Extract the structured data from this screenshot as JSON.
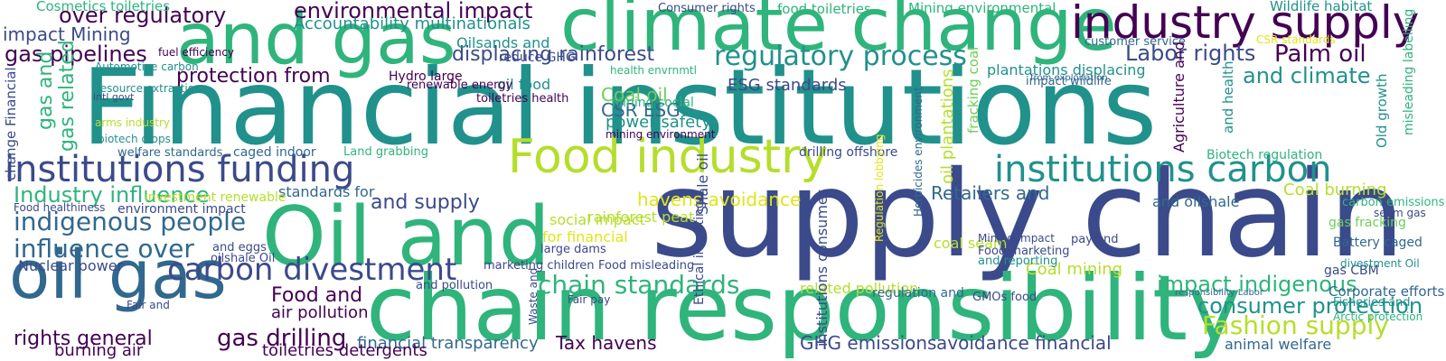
{
  "palette": {
    "dark_purple": "#440154",
    "indigo": "#3b4a8a",
    "blue": "#31688e",
    "teal": "#21918c",
    "green": "#2fb47c",
    "light_green": "#6ece58",
    "yellow_green": "#b5de2b",
    "yellow": "#e2e418"
  },
  "words": [
    {
      "text": "Financial institutions",
      "color": "#21918c",
      "orientation": "horizontal"
    },
    {
      "text": "supply chain",
      "color": "#3b4a8a",
      "orientation": "horizontal"
    },
    {
      "text": "climate change",
      "color": "#2fb47c",
      "orientation": "horizontal"
    },
    {
      "text": "and gas",
      "color": "#2fb47c",
      "orientation": "horizontal"
    },
    {
      "text": "chain responsibility",
      "color": "#2fb47c",
      "orientation": "horizontal"
    },
    {
      "text": "Oil and",
      "color": "#2fb47c",
      "orientation": "horizontal"
    },
    {
      "text": "oil gas",
      "color": "#31688e",
      "orientation": "horizontal"
    },
    {
      "text": "Food industry",
      "color": "#b5de2b",
      "orientation": "horizontal"
    },
    {
      "text": "industry supply",
      "color": "#440154",
      "orientation": "horizontal"
    },
    {
      "text": "institutions funding",
      "color": "#3b4a8a",
      "orientation": "horizontal"
    },
    {
      "text": "institutions carbon",
      "color": "#21918c",
      "orientation": "horizontal"
    },
    {
      "text": "carbon divestment",
      "color": "#3b4a8a",
      "orientation": "horizontal"
    },
    {
      "text": "indigenous people",
      "color": "#31688e",
      "orientation": "horizontal"
    },
    {
      "text": "influence over",
      "color": "#31688e",
      "orientation": "horizontal"
    },
    {
      "text": "Industry influence",
      "color": "#2fb47c",
      "orientation": "horizontal"
    },
    {
      "text": "environmental impact",
      "color": "#440154",
      "orientation": "horizontal"
    },
    {
      "text": "over regulatory",
      "color": "#440154",
      "orientation": "horizontal"
    },
    {
      "text": "regulatory process",
      "color": "#21918c",
      "orientation": "horizontal"
    },
    {
      "text": "Labor rights",
      "color": "#3b4a8a",
      "orientation": "horizontal"
    },
    {
      "text": "Palm oil",
      "color": "#440154",
      "orientation": "horizontal"
    },
    {
      "text": "and climate",
      "color": "#21918c",
      "orientation": "horizontal"
    },
    {
      "text": "gas pipelines",
      "color": "#440154",
      "orientation": "horizontal"
    },
    {
      "text": "protection from",
      "color": "#440154",
      "orientation": "horizontal"
    },
    {
      "text": "displacing rainforest",
      "color": "#3b4a8a",
      "orientation": "horizontal"
    },
    {
      "text": "chain standards",
      "color": "#2fb47c",
      "orientation": "horizontal"
    },
    {
      "text": "impact indigenous",
      "color": "#2fb47c",
      "orientation": "horizontal"
    },
    {
      "text": "consumer protection",
      "color": "#21918c",
      "orientation": "horizontal"
    },
    {
      "text": "Fashion supply",
      "color": "#b5de2b",
      "orientation": "horizontal"
    },
    {
      "text": "Food and",
      "color": "#440154",
      "orientation": "horizontal"
    },
    {
      "text": "air pollution",
      "color": "#440154",
      "orientation": "horizontal"
    },
    {
      "text": "gas drilling",
      "color": "#440154",
      "orientation": "horizontal"
    },
    {
      "text": "rights general",
      "color": "#440154",
      "orientation": "horizontal"
    },
    {
      "text": "burning air",
      "color": "#440154",
      "orientation": "horizontal"
    },
    {
      "text": "Tax havens",
      "color": "#440154",
      "orientation": "horizontal"
    },
    {
      "text": "GHG emissions",
      "color": "#3b4a8a",
      "orientation": "horizontal"
    },
    {
      "text": "avoidance financial",
      "color": "#3b4a8a",
      "orientation": "horizontal"
    },
    {
      "text": "financial transparency",
      "color": "#31688e",
      "orientation": "horizontal"
    },
    {
      "text": "animal welfare",
      "color": "#31688e",
      "orientation": "horizontal"
    },
    {
      "text": "Retailers and",
      "color": "#31688e",
      "orientation": "horizontal"
    },
    {
      "text": "Coal burning",
      "color": "#b5de2b",
      "orientation": "horizontal"
    },
    {
      "text": "Coal mining",
      "color": "#b5de2b",
      "orientation": "horizontal"
    },
    {
      "text": "havens avoidance",
      "color": "#e2e418",
      "orientation": "horizontal"
    },
    {
      "text": "rainforest peat",
      "color": "#b5de2b",
      "orientation": "horizontal"
    },
    {
      "text": "Coal oil",
      "color": "#6ece58",
      "orientation": "horizontal"
    },
    {
      "text": "CSR ESG",
      "color": "#31688e",
      "orientation": "horizontal"
    },
    {
      "text": "ESG standards",
      "color": "#3b4a8a",
      "orientation": "horizontal"
    },
    {
      "text": "and supply",
      "color": "#3b4a8a",
      "orientation": "horizontal"
    },
    {
      "text": "for financial",
      "color": "#e2e418",
      "orientation": "horizontal"
    },
    {
      "text": "standards for",
      "color": "#31688e",
      "orientation": "horizontal"
    },
    {
      "text": "social impact",
      "color": "#b5de2b",
      "orientation": "horizontal"
    },
    {
      "text": "power safety",
      "color": "#21918c",
      "orientation": "horizontal"
    },
    {
      "text": "Mining social",
      "color": "#2fb47c",
      "orientation": "horizontal"
    },
    {
      "text": "oil food",
      "color": "#21918c",
      "orientation": "horizontal"
    },
    {
      "text": "impact Mining",
      "color": "#3b4a8a",
      "orientation": "horizontal"
    },
    {
      "text": "Accountability multinationals",
      "color": "#21918c",
      "orientation": "horizontal"
    },
    {
      "text": "Oilsands and",
      "color": "#21918c",
      "orientation": "horizontal"
    },
    {
      "text": "reduce GHG",
      "color": "#3b4a8a",
      "orientation": "horizontal"
    },
    {
      "text": "Cosmetics toiletries",
      "color": "#2fb47c",
      "orientation": "horizontal"
    },
    {
      "text": "Consumer rights",
      "color": "#3b4a8a",
      "orientation": "horizontal"
    },
    {
      "text": "food toiletries",
      "color": "#2fb47c",
      "orientation": "horizontal"
    },
    {
      "text": "Mining environmental",
      "color": "#2fb47c",
      "orientation": "horizontal"
    },
    {
      "text": "Wildlife habitat",
      "color": "#21918c",
      "orientation": "horizontal"
    },
    {
      "text": "customer service",
      "color": "#31688e",
      "orientation": "horizontal"
    },
    {
      "text": "CSR standards",
      "color": "#e2e418",
      "orientation": "horizontal"
    },
    {
      "text": "plantations displacing",
      "color": "#21918c",
      "orientation": "horizontal"
    },
    {
      "text": "impact wildlife",
      "color": "#31688e",
      "orientation": "horizontal"
    },
    {
      "text": "from exploitation",
      "color": "#31688e",
      "orientation": "horizontal"
    },
    {
      "text": "Biotech regulation",
      "color": "#2fb47c",
      "orientation": "horizontal"
    },
    {
      "text": "and oilshale",
      "color": "#31688e",
      "orientation": "horizontal"
    },
    {
      "text": "gas fracking",
      "color": "#6ece58",
      "orientation": "horizontal"
    },
    {
      "text": "Battery caged",
      "color": "#31688e",
      "orientation": "horizontal"
    },
    {
      "text": "seam gas",
      "color": "#3b4a8a",
      "orientation": "horizontal"
    },
    {
      "text": "Corporate efforts",
      "color": "#31688e",
      "orientation": "horizontal"
    },
    {
      "text": "gas CBM",
      "color": "#3b4a8a",
      "orientation": "horizontal"
    },
    {
      "text": "responsibility Labor",
      "color": "#31688e",
      "orientation": "horizontal"
    },
    {
      "text": "Arctic protection",
      "color": "#2fb47c",
      "orientation": "horizontal"
    },
    {
      "text": "related pollution",
      "color": "#b5de2b",
      "orientation": "horizontal"
    },
    {
      "text": "regulation and",
      "color": "#31688e",
      "orientation": "horizontal"
    },
    {
      "text": "coal seam",
      "color": "#b5de2b",
      "orientation": "horizontal"
    },
    {
      "text": "Food marketing",
      "color": "#3b4a8a",
      "orientation": "horizontal"
    },
    {
      "text": "and reporting",
      "color": "#21918c",
      "orientation": "horizontal"
    },
    {
      "text": "Mining impact",
      "color": "#3b4a8a",
      "orientation": "horizontal"
    },
    {
      "text": "Nuclear power",
      "color": "#3b4a8a",
      "orientation": "horizontal"
    },
    {
      "text": "environment impact",
      "color": "#3b4a8a",
      "orientation": "horizontal"
    },
    {
      "text": "Food healthiness",
      "color": "#3b4a8a",
      "orientation": "horizontal"
    },
    {
      "text": "investment renewable",
      "color": "#b5de2b",
      "orientation": "horizontal"
    },
    {
      "text": "caged indoor",
      "color": "#31688e",
      "orientation": "horizontal"
    },
    {
      "text": "drilling offshore",
      "color": "#3b4a8a",
      "orientation": "horizontal"
    },
    {
      "text": "mining environment",
      "color": "#440154",
      "orientation": "horizontal"
    },
    {
      "text": "marketing children",
      "color": "#3b4a8a",
      "orientation": "horizontal"
    },
    {
      "text": "Food misleading",
      "color": "#3b4a8a",
      "orientation": "horizontal"
    },
    {
      "text": "large dams",
      "color": "#3b4a8a",
      "orientation": "horizontal"
    },
    {
      "text": "and pollution",
      "color": "#3b4a8a",
      "orientation": "horizontal"
    },
    {
      "text": "and eggs",
      "color": "#3b4a8a",
      "orientation": "horizontal"
    },
    {
      "text": "oilshale Oil",
      "color": "#3b4a8a",
      "orientation": "horizontal"
    },
    {
      "text": "Land grabbing",
      "color": "#2fb47c",
      "orientation": "horizontal"
    },
    {
      "text": "welfare standards",
      "color": "#31688e",
      "orientation": "horizontal"
    },
    {
      "text": "renewable energy",
      "color": "#440154",
      "orientation": "horizontal"
    },
    {
      "text": "Hydro large",
      "color": "#440154",
      "orientation": "horizontal"
    },
    {
      "text": "toiletries health",
      "color": "#440154",
      "orientation": "horizontal"
    },
    {
      "text": "toiletries detergents",
      "color": "#440154",
      "orientation": "horizontal"
    },
    {
      "text": "arms industry",
      "color": "#b5de2b",
      "orientation": "horizontal"
    },
    {
      "text": "biotech crops",
      "color": "#21918c",
      "orientation": "horizontal"
    },
    {
      "text": "Resource extraction",
      "color": "#21918c",
      "orientation": "horizontal"
    },
    {
      "text": "intl govt",
      "color": "#3b4a8a",
      "orientation": "horizontal"
    },
    {
      "text": "Automotive carbon",
      "color": "#21918c",
      "orientation": "horizontal"
    },
    {
      "text": "fuel efficiency",
      "color": "#440154",
      "orientation": "horizontal"
    },
    {
      "text": "health envrnmtl",
      "color": "#2fb47c",
      "orientation": "horizontal"
    },
    {
      "text": "carbon emissions",
      "color": "#2fb47c",
      "orientation": "horizontal"
    },
    {
      "text": "GMOs food",
      "color": "#3b4a8a",
      "orientation": "horizontal"
    },
    {
      "text": "Fair pay",
      "color": "#3b4a8a",
      "orientation": "horizontal"
    },
    {
      "text": "Fair and",
      "color": "#3b4a8a",
      "orientation": "horizontal"
    },
    {
      "text": "pay and",
      "color": "#3b4a8a",
      "orientation": "horizontal"
    },
    {
      "text": "Fisheries and",
      "color": "#21918c",
      "orientation": "horizontal"
    },
    {
      "text": "divestment Oil",
      "color": "#21918c",
      "orientation": "horizontal"
    },
    {
      "text": "Shale oil",
      "color": "#3b4a8a",
      "orientation": "vertical"
    },
    {
      "text": "institutions consumer",
      "color": "#3b4a8a",
      "orientation": "vertical"
    },
    {
      "text": "oil plantations",
      "color": "#b5de2b",
      "orientation": "vertical"
    },
    {
      "text": "Ethical investing",
      "color": "#3b4a8a",
      "orientation": "vertical"
    },
    {
      "text": "gas related",
      "color": "#2fb47c",
      "orientation": "vertical"
    },
    {
      "text": "gas and",
      "color": "#2fb47c",
      "orientation": "vertical"
    },
    {
      "text": "fracking coal",
      "color": "#6ece58",
      "orientation": "vertical"
    },
    {
      "text": "Agriculture and",
      "color": "#440154",
      "orientation": "vertical"
    },
    {
      "text": "and health",
      "color": "#21918c",
      "orientation": "vertical"
    },
    {
      "text": "Old growth",
      "color": "#21918c",
      "orientation": "vertical"
    },
    {
      "text": "misleading labelling",
      "color": "#2fb47c",
      "orientation": "vertical"
    },
    {
      "text": "change Financial",
      "color": "#3b4a8a",
      "orientation": "vertical"
    },
    {
      "text": "Waste and",
      "color": "#3b4a8a",
      "orientation": "vertical"
    },
    {
      "text": "Herbicides environment",
      "color": "#31688e",
      "orientation": "vertical"
    },
    {
      "text": "Regulation lobbying",
      "color": "#e2e418",
      "orientation": "vertical"
    }
  ]
}
